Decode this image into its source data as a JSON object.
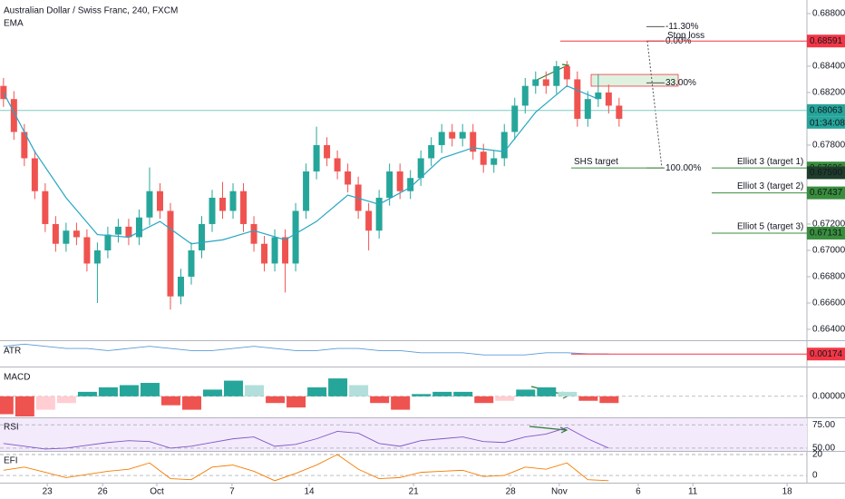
{
  "chart_data": {
    "type": "candlestick",
    "title": "Australian Dollar / Swiss Franc, 240, FXCM",
    "indicator": "EMA",
    "up_color": "#26a69a",
    "down_color": "#ef5350",
    "xlim": [
      0,
      232
    ],
    "xticks": [
      {
        "value": 13.6,
        "label": "23"
      },
      {
        "value": 29.5,
        "label": "26"
      },
      {
        "value": 45.1,
        "label": "Oct"
      },
      {
        "value": 66.7,
        "label": "7"
      },
      {
        "value": 88.9,
        "label": "14"
      },
      {
        "value": 118.9,
        "label": "21"
      },
      {
        "value": 146.8,
        "label": "28"
      },
      {
        "value": 160.8,
        "label": "Nov"
      },
      {
        "value": 183.5,
        "label": "6"
      },
      {
        "value": 199.2,
        "label": "11"
      },
      {
        "value": 226.3,
        "label": "18"
      }
    ],
    "ylim": [
      0.66317,
      0.68903
    ],
    "yticks": [
      {
        "value": 0.688,
        "label": "0.68800"
      },
      {
        "value": 0.684,
        "label": "0.68400"
      },
      {
        "value": 0.682,
        "label": "0.68200"
      },
      {
        "value": 0.678,
        "label": "0.67800"
      },
      {
        "value": 0.672,
        "label": "0.67200"
      },
      {
        "value": 0.67,
        "label": "0.67000"
      },
      {
        "value": 0.668,
        "label": "0.66800"
      },
      {
        "value": 0.666,
        "label": "0.66600"
      },
      {
        "value": 0.664,
        "label": "0.66400"
      }
    ],
    "x": [
      1,
      4,
      7,
      10,
      13,
      16,
      19,
      22,
      25,
      28,
      31,
      34,
      37,
      40,
      43,
      46,
      49,
      52,
      55,
      58,
      61,
      64,
      67,
      70,
      73,
      76,
      79,
      82,
      85,
      88,
      91,
      94,
      97,
      100,
      103,
      106,
      109,
      112,
      115,
      118,
      121,
      124,
      127,
      130,
      133,
      136,
      139,
      142,
      145,
      148,
      151,
      154,
      157,
      160,
      163,
      166,
      169,
      172,
      175,
      178
    ],
    "open": [
      0.6825,
      0.6815,
      0.679,
      0.677,
      0.6745,
      0.672,
      0.6705,
      0.6715,
      0.671,
      0.669,
      0.67,
      0.6712,
      0.6718,
      0.671,
      0.6725,
      0.6745,
      0.673,
      0.6665,
      0.668,
      0.67,
      0.672,
      0.674,
      0.673,
      0.6745,
      0.672,
      0.6705,
      0.669,
      0.671,
      0.669,
      0.673,
      0.676,
      0.678,
      0.677,
      0.676,
      0.675,
      0.673,
      0.6715,
      0.674,
      0.676,
      0.6745,
      0.6755,
      0.677,
      0.678,
      0.679,
      0.6785,
      0.679,
      0.6775,
      0.6765,
      0.677,
      0.679,
      0.681,
      0.6825,
      0.683,
      0.6825,
      0.684,
      0.683,
      0.68,
      0.6815,
      0.682,
      0.681
    ],
    "high": [
      0.6831,
      0.6821,
      0.6796,
      0.6776,
      0.6751,
      0.6726,
      0.6721,
      0.6721,
      0.6716,
      0.6706,
      0.6718,
      0.6724,
      0.6724,
      0.6731,
      0.6763,
      0.6751,
      0.6736,
      0.6686,
      0.6706,
      0.6726,
      0.6746,
      0.6752,
      0.6751,
      0.6751,
      0.6726,
      0.6711,
      0.6716,
      0.6716,
      0.6736,
      0.6766,
      0.6794,
      0.6786,
      0.6776,
      0.6766,
      0.6756,
      0.6736,
      0.6746,
      0.6766,
      0.6766,
      0.6761,
      0.6776,
      0.6786,
      0.6796,
      0.6796,
      0.6796,
      0.6796,
      0.6781,
      0.6776,
      0.6796,
      0.6816,
      0.6831,
      0.6836,
      0.6836,
      0.6844,
      0.6844,
      0.6836,
      0.6821,
      0.6834,
      0.6826,
      0.6816
    ],
    "low": [
      0.6809,
      0.6784,
      0.6764,
      0.6739,
      0.6714,
      0.6699,
      0.6699,
      0.6704,
      0.6684,
      0.666,
      0.6694,
      0.6706,
      0.6704,
      0.6704,
      0.6719,
      0.6724,
      0.6655,
      0.6659,
      0.6674,
      0.6694,
      0.6714,
      0.6724,
      0.6724,
      0.6714,
      0.6699,
      0.6684,
      0.6684,
      0.6668,
      0.6684,
      0.6724,
      0.6754,
      0.6764,
      0.6754,
      0.6744,
      0.6724,
      0.67,
      0.6709,
      0.6734,
      0.6739,
      0.6739,
      0.6749,
      0.6764,
      0.6774,
      0.6779,
      0.6779,
      0.6769,
      0.6759,
      0.6759,
      0.6764,
      0.6784,
      0.6804,
      0.6819,
      0.6819,
      0.6819,
      0.6824,
      0.6794,
      0.6794,
      0.6809,
      0.6804,
      0.6794
    ],
    "close": [
      0.6815,
      0.679,
      0.677,
      0.6745,
      0.672,
      0.6705,
      0.6715,
      0.671,
      0.669,
      0.67,
      0.6712,
      0.6718,
      0.671,
      0.6725,
      0.6745,
      0.673,
      0.6665,
      0.668,
      0.67,
      0.672,
      0.674,
      0.673,
      0.6745,
      0.672,
      0.6705,
      0.669,
      0.671,
      0.669,
      0.673,
      0.676,
      0.678,
      0.677,
      0.676,
      0.675,
      0.673,
      0.6715,
      0.674,
      0.676,
      0.6745,
      0.6755,
      0.677,
      0.678,
      0.679,
      0.6785,
      0.679,
      0.6775,
      0.6765,
      0.677,
      0.679,
      0.681,
      0.6825,
      0.683,
      0.6825,
      0.684,
      0.683,
      0.68,
      0.6815,
      0.682,
      0.681,
      0.68
    ],
    "ema": {
      "color": "#26a6c4",
      "x": [
        1,
        10,
        19,
        28,
        37,
        46,
        55,
        64,
        73,
        82,
        91,
        100,
        109,
        118,
        127,
        136,
        145,
        154,
        163,
        172
      ],
      "values": [
        0.682,
        0.6775,
        0.674,
        0.6712,
        0.671,
        0.6722,
        0.6705,
        0.6708,
        0.6715,
        0.6708,
        0.6722,
        0.6742,
        0.6735,
        0.6748,
        0.677,
        0.6778,
        0.6775,
        0.6805,
        0.6825,
        0.6815
      ]
    },
    "levels": [
      {
        "value": 0.68591,
        "color": "#f23645",
        "text": "Stop loss"
      },
      {
        "value": 0.68063,
        "color": "#26a69a",
        "countdown": "01:34:08"
      },
      {
        "value": 0.67626,
        "color": "#388e3c",
        "text": "Elliot 3 (target 1)",
        "second_text": "SHS target"
      },
      {
        "value": 0.6759,
        "label": "0.67590",
        "color": "#1e3d2a"
      },
      {
        "value": 0.67437,
        "color": "#388e3c",
        "text": "Elliot 3 (target 2)"
      },
      {
        "value": 0.67131,
        "color": "#388e3c",
        "text": "Elliot 5 (target 3)"
      }
    ],
    "fib": {
      "start": 0.68591,
      "end": 0.67626,
      "levels": [
        {
          "value": -11.3,
          "label": "-11.30%"
        },
        {
          "value": 0,
          "label": "0.00%"
        },
        {
          "value": 33,
          "label": "33.00%"
        },
        {
          "value": 100,
          "label": "100.00%"
        }
      ]
    },
    "zone": [
      0.68248,
      0.68337
    ],
    "panes": [
      {
        "name": "ATR",
        "type": "line",
        "color": "#5b9bd5",
        "ylim": [
          0.0012,
          0.0023
        ],
        "last_color": "#f23645",
        "x": [
          1,
          7,
          13,
          19,
          25,
          31,
          37,
          43,
          49,
          55,
          61,
          67,
          73,
          79,
          85,
          91,
          97,
          103,
          109,
          115,
          121,
          127,
          133,
          139,
          145,
          151,
          157,
          163,
          169,
          175
        ],
        "values": [
          0.0021,
          0.0022,
          0.0021,
          0.002,
          0.002,
          0.0019,
          0.002,
          0.0021,
          0.002,
          0.0019,
          0.0019,
          0.002,
          0.0021,
          0.002,
          0.0019,
          0.0019,
          0.002,
          0.002,
          0.0019,
          0.0019,
          0.0018,
          0.0018,
          0.0018,
          0.0017,
          0.0017,
          0.0017,
          0.0018,
          0.0018,
          0.00175,
          0.00174
        ]
      },
      {
        "name": "MACD",
        "type": "bar",
        "ylim": [
          -0.0009,
          0.00125
        ],
        "yticks": [
          {
            "value": 0,
            "label": "0.00000"
          }
        ],
        "x": [
          1,
          7,
          13,
          19,
          25,
          31,
          37,
          43,
          49,
          55,
          61,
          67,
          73,
          79,
          85,
          91,
          97,
          103,
          109,
          115,
          121,
          127,
          133,
          139,
          145,
          151,
          157,
          163,
          169,
          175
        ],
        "values": [
          -0.0008,
          -0.0009,
          -0.0006,
          -0.0003,
          0.0002,
          0.0004,
          0.0005,
          0.0006,
          -0.0004,
          -0.0006,
          0.0003,
          0.0007,
          0.0005,
          -0.0003,
          -0.0005,
          0.0004,
          0.0008,
          0.0005,
          -0.0003,
          -0.0006,
          0.0001,
          0.0002,
          0.0002,
          -0.0003,
          -0.0002,
          0.0003,
          0.0004,
          0.0002,
          -0.0002,
          -0.0003
        ]
      },
      {
        "name": "RSI",
        "type": "line",
        "color": "#7e57c2",
        "ylim": [
          47,
          82
        ],
        "yticks": [
          {
            "value": 75,
            "label": "75.00"
          },
          {
            "value": 50,
            "label": "50.00"
          }
        ],
        "x": [
          1,
          7,
          13,
          19,
          25,
          31,
          37,
          43,
          49,
          55,
          61,
          67,
          73,
          79,
          85,
          91,
          97,
          103,
          109,
          115,
          121,
          127,
          133,
          139,
          145,
          151,
          157,
          163,
          169,
          175
        ],
        "values": [
          55,
          52,
          49,
          50,
          53,
          56,
          58,
          57,
          50,
          52,
          56,
          60,
          62,
          52,
          54,
          60,
          68,
          66,
          55,
          52,
          58,
          60,
          62,
          57,
          56,
          62,
          65,
          72,
          60,
          50
        ]
      },
      {
        "name": "EFI",
        "type": "line",
        "color": "#f57c00",
        "ylim": [
          -6,
          22.6
        ],
        "yticks": [
          20,
          0
        ],
        "x": [
          1,
          7,
          13,
          19,
          25,
          31,
          37,
          43,
          49,
          55,
          61,
          67,
          73,
          79,
          85,
          91,
          97,
          103,
          109,
          115,
          121,
          127,
          133,
          139,
          145,
          151,
          157,
          163,
          169,
          175
        ],
        "values": [
          5,
          8,
          3,
          -2,
          1,
          4,
          6,
          12,
          -3,
          -4,
          8,
          10,
          4,
          -5,
          2,
          10,
          20,
          6,
          -3,
          -2,
          3,
          4,
          5,
          -1,
          0,
          8,
          6,
          12,
          -4,
          -5
        ]
      }
    ]
  }
}
